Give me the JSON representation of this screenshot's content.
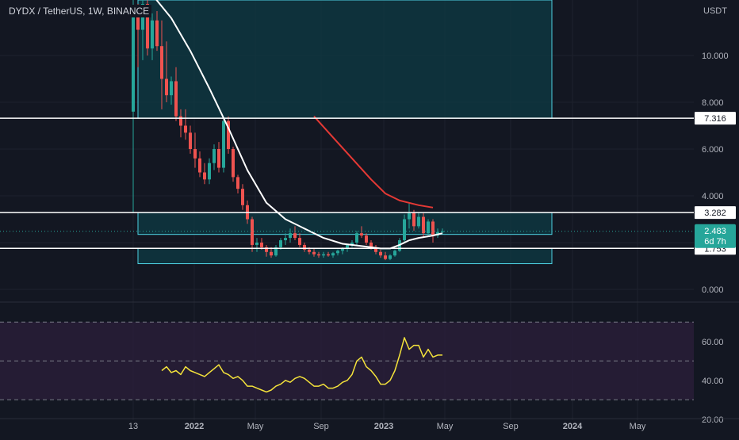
{
  "header": {
    "symbol_title": "DYDX / TetherUS, 1W, BINANCE",
    "currency": "USDT"
  },
  "colors": {
    "background": "#131722",
    "grid": "#1e222d",
    "candle_up": "#26a69a",
    "candle_down": "#ef5350",
    "ma_fast": "#ffffff",
    "ma_slow": "#e53935",
    "rsi_line": "#f5e33b",
    "rsi_band": "#2a1e3a",
    "zone_fill": "#0d3b44",
    "zone_stroke": "#4dd0e1",
    "label_bg": "#ffffff",
    "price_badge": "#26a69a"
  },
  "price_axis": {
    "ticks": [
      "10.000",
      "8.000",
      "6.000",
      "4.000",
      "0.000"
    ]
  },
  "rsi_axis": {
    "ticks": [
      "60.00",
      "40.00",
      "20.00"
    ]
  },
  "time_axis": {
    "ticks": [
      "13",
      "2022",
      "May",
      "Sep",
      "2023",
      "May",
      "Sep",
      "2024",
      "May"
    ]
  },
  "levels": [
    {
      "label": "7.316",
      "price": 7.316
    },
    {
      "label": "3.282",
      "price": 3.282
    },
    {
      "label": "1.753",
      "price": 1.753
    }
  ],
  "current_price": {
    "label": "2.483",
    "countdown": "6d 7h"
  },
  "chart_data": {
    "type": "candlestick",
    "title": "DYDX / TetherUS, 1W, BINANCE",
    "y_unit": "USDT",
    "candles_ohlc": [
      [
        7.6,
        12.9,
        3.3,
        12.0
      ],
      [
        12.0,
        12.2,
        9.5,
        11.1
      ],
      [
        11.1,
        12.5,
        9.8,
        12.2
      ],
      [
        12.2,
        12.4,
        10.0,
        10.3
      ],
      [
        10.3,
        11.8,
        9.8,
        11.5
      ],
      [
        11.5,
        11.9,
        10.2,
        10.4
      ],
      [
        10.4,
        11.5,
        7.7,
        9.0
      ],
      [
        9.0,
        10.6,
        8.0,
        8.3
      ],
      [
        8.3,
        9.1,
        7.9,
        8.9
      ],
      [
        8.9,
        9.5,
        7.2,
        7.4
      ],
      [
        7.4,
        7.7,
        6.5,
        7.0
      ],
      [
        7.0,
        7.7,
        6.4,
        6.7
      ],
      [
        6.7,
        7.0,
        5.8,
        6.0
      ],
      [
        6.0,
        6.7,
        5.2,
        5.6
      ],
      [
        5.6,
        5.9,
        4.8,
        5.0
      ],
      [
        5.0,
        5.4,
        4.5,
        4.7
      ],
      [
        4.7,
        5.6,
        4.5,
        5.4
      ],
      [
        5.4,
        6.2,
        5.1,
        6.0
      ],
      [
        6.0,
        6.3,
        5.0,
        5.2
      ],
      [
        5.2,
        7.3,
        5.0,
        7.2
      ],
      [
        7.2,
        7.4,
        5.8,
        6.0
      ],
      [
        6.0,
        6.1,
        4.6,
        4.8
      ],
      [
        4.8,
        4.9,
        4.1,
        4.3
      ],
      [
        4.3,
        4.5,
        3.4,
        3.6
      ],
      [
        3.6,
        3.8,
        2.8,
        3.0
      ],
      [
        3.0,
        3.1,
        1.6,
        1.9
      ],
      [
        1.9,
        2.2,
        1.6,
        2.0
      ],
      [
        2.0,
        2.2,
        1.7,
        1.8
      ],
      [
        1.8,
        1.9,
        1.4,
        1.6
      ],
      [
        1.6,
        1.8,
        1.35,
        1.45
      ],
      [
        1.45,
        1.9,
        1.4,
        1.8
      ],
      [
        1.8,
        2.2,
        1.7,
        2.1
      ],
      [
        2.1,
        2.4,
        1.9,
        2.2
      ],
      [
        2.2,
        2.6,
        2.0,
        2.4
      ],
      [
        2.4,
        2.7,
        2.1,
        2.2
      ],
      [
        2.2,
        2.4,
        1.8,
        1.9
      ],
      [
        1.9,
        2.0,
        1.6,
        1.7
      ],
      [
        1.7,
        1.8,
        1.5,
        1.6
      ],
      [
        1.6,
        1.75,
        1.4,
        1.5
      ],
      [
        1.5,
        1.6,
        1.35,
        1.45
      ],
      [
        1.45,
        1.6,
        1.35,
        1.5
      ],
      [
        1.5,
        1.6,
        1.4,
        1.45
      ],
      [
        1.45,
        1.6,
        1.35,
        1.55
      ],
      [
        1.55,
        1.7,
        1.45,
        1.65
      ],
      [
        1.65,
        1.8,
        1.5,
        1.75
      ],
      [
        1.75,
        1.95,
        1.6,
        1.9
      ],
      [
        1.9,
        2.1,
        1.8,
        2.0
      ],
      [
        2.0,
        2.5,
        1.9,
        2.4
      ],
      [
        2.4,
        2.7,
        2.2,
        2.3
      ],
      [
        2.3,
        2.4,
        1.9,
        2.0
      ],
      [
        2.0,
        2.1,
        1.7,
        1.8
      ],
      [
        1.8,
        1.9,
        1.5,
        1.6
      ],
      [
        1.6,
        1.7,
        1.35,
        1.45
      ],
      [
        1.45,
        1.6,
        1.25,
        1.3
      ],
      [
        1.3,
        1.5,
        1.25,
        1.45
      ],
      [
        1.45,
        1.7,
        1.4,
        1.65
      ],
      [
        1.65,
        2.2,
        1.6,
        2.1
      ],
      [
        2.1,
        3.2,
        2.0,
        3.0
      ],
      [
        3.0,
        3.7,
        2.6,
        3.3
      ],
      [
        3.3,
        3.4,
        2.5,
        2.7
      ],
      [
        2.7,
        3.3,
        2.6,
        3.1
      ],
      [
        3.1,
        3.3,
        2.2,
        2.4
      ],
      [
        2.4,
        3.0,
        2.3,
        2.9
      ],
      [
        2.9,
        3.0,
        2.0,
        2.3
      ],
      [
        2.3,
        2.6,
        2.2,
        2.45
      ],
      [
        2.45,
        2.6,
        2.4,
        2.483
      ]
    ],
    "ma_fast": [
      [
        0,
        13.0
      ],
      [
        4,
        12.6
      ],
      [
        8,
        11.6
      ],
      [
        12,
        10.2
      ],
      [
        16,
        8.6
      ],
      [
        20,
        6.9
      ],
      [
        24,
        5.1
      ],
      [
        28,
        3.7
      ],
      [
        32,
        3.0
      ],
      [
        36,
        2.6
      ],
      [
        40,
        2.2
      ],
      [
        44,
        1.95
      ],
      [
        48,
        1.85
      ],
      [
        52,
        1.75
      ],
      [
        54,
        1.75
      ],
      [
        56,
        1.9
      ],
      [
        58,
        2.1
      ],
      [
        60,
        2.2
      ],
      [
        63,
        2.3
      ],
      [
        65,
        2.4
      ]
    ],
    "ma_slow": [
      [
        38,
        7.4
      ],
      [
        42,
        6.5
      ],
      [
        46,
        5.6
      ],
      [
        50,
        4.7
      ],
      [
        53,
        4.1
      ],
      [
        56,
        3.8
      ],
      [
        60,
        3.6
      ],
      [
        63,
        3.5
      ]
    ],
    "rsi": [
      [
        6,
        45
      ],
      [
        7,
        47
      ],
      [
        8,
        44
      ],
      [
        9,
        45
      ],
      [
        10,
        43
      ],
      [
        11,
        47
      ],
      [
        12,
        45
      ],
      [
        13,
        44
      ],
      [
        14,
        43
      ],
      [
        15,
        42
      ],
      [
        16,
        44
      ],
      [
        17,
        46
      ],
      [
        18,
        48
      ],
      [
        19,
        44
      ],
      [
        20,
        43
      ],
      [
        21,
        41
      ],
      [
        22,
        42
      ],
      [
        23,
        40
      ],
      [
        24,
        37
      ],
      [
        25,
        37
      ],
      [
        26,
        36
      ],
      [
        27,
        35
      ],
      [
        28,
        34
      ],
      [
        29,
        35
      ],
      [
        30,
        37
      ],
      [
        31,
        38
      ],
      [
        32,
        40
      ],
      [
        33,
        39
      ],
      [
        34,
        41
      ],
      [
        35,
        42
      ],
      [
        36,
        41
      ],
      [
        37,
        39
      ],
      [
        38,
        37
      ],
      [
        39,
        37
      ],
      [
        40,
        38
      ],
      [
        41,
        36
      ],
      [
        42,
        36
      ],
      [
        43,
        37
      ],
      [
        44,
        39
      ],
      [
        45,
        40
      ],
      [
        46,
        43
      ],
      [
        47,
        50
      ],
      [
        48,
        52
      ],
      [
        49,
        47
      ],
      [
        50,
        45
      ],
      [
        51,
        42
      ],
      [
        52,
        38
      ],
      [
        53,
        38
      ],
      [
        54,
        40
      ],
      [
        55,
        45
      ],
      [
        56,
        53
      ],
      [
        57,
        62
      ],
      [
        58,
        56
      ],
      [
        59,
        58
      ],
      [
        60,
        58
      ],
      [
        61,
        52
      ],
      [
        62,
        56
      ],
      [
        63,
        52
      ],
      [
        64,
        53
      ],
      [
        65,
        53
      ]
    ],
    "rsi_bands": [
      70,
      50,
      30
    ],
    "zones": [
      {
        "from_bar": 1,
        "to_bar": 88,
        "high": 13.5,
        "low": 7.316,
        "fill": "#0d3b44"
      },
      {
        "from_bar": 1,
        "to_bar": 88,
        "high": 3.282,
        "low": 2.35,
        "fill": "#0d3b44"
      },
      {
        "from_bar": 1,
        "to_bar": 88,
        "high": 1.753,
        "low": 1.1,
        "fill": "#0d3b44"
      }
    ],
    "price_range": [
      0,
      13.5
    ],
    "rsi_range": [
      15,
      75
    ]
  }
}
